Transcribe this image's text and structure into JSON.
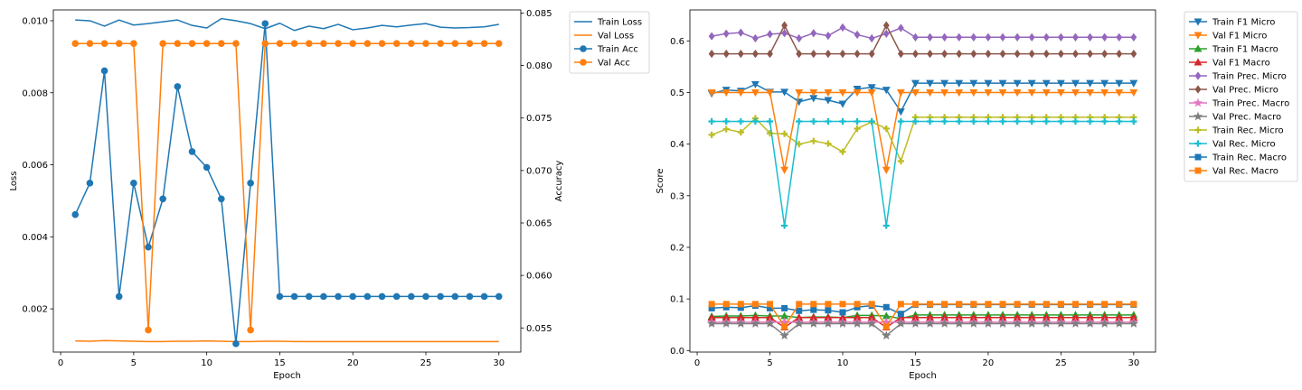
{
  "chart_data": [
    {
      "type": "line",
      "xlabel": "Epoch",
      "ylabel": "Loss",
      "y2label": "Accuracy",
      "xlim": [
        -0.5,
        31.5
      ],
      "ylim": [
        0.0008,
        0.0103
      ],
      "y2lim": [
        0.0527,
        0.0853
      ],
      "xticks": [
        0,
        5,
        10,
        15,
        20,
        25,
        30
      ],
      "yticks": [
        0.002,
        0.004,
        0.006,
        0.008,
        0.01
      ],
      "ytick_labels": [
        "0.002",
        "0.004",
        "0.006",
        "0.008",
        "0.010"
      ],
      "y2ticks": [
        0.055,
        0.06,
        0.065,
        0.07,
        0.075,
        0.08,
        0.085
      ],
      "y2tick_labels": [
        "0.055",
        "0.060",
        "0.065",
        "0.070",
        "0.075",
        "0.080",
        "0.085"
      ],
      "grid": false,
      "legend_placement": "outside-right",
      "x": [
        1,
        2,
        3,
        4,
        5,
        6,
        7,
        8,
        9,
        10,
        11,
        12,
        13,
        14,
        15,
        16,
        17,
        18,
        19,
        20,
        21,
        22,
        23,
        24,
        25,
        26,
        27,
        28,
        29,
        30
      ],
      "series": [
        {
          "name": "Train Loss",
          "axis": "left",
          "color": "#1f77b4",
          "marker": "none",
          "values": [
            0.01002,
            0.01,
            0.00985,
            0.01002,
            0.00988,
            0.00992,
            0.00997,
            0.01002,
            0.00987,
            0.0098,
            0.01006,
            0.01,
            0.00992,
            0.00978,
            0.00993,
            0.00973,
            0.00985,
            0.00978,
            0.0099,
            0.00975,
            0.0098,
            0.00987,
            0.00983,
            0.00988,
            0.00992,
            0.00982,
            0.0098,
            0.00981,
            0.00983,
            0.0099
          ]
        },
        {
          "name": "Val Loss",
          "axis": "left",
          "color": "#ff7f0e",
          "marker": "none",
          "values": [
            0.00111,
            0.0011,
            0.00112,
            0.00111,
            0.0011,
            0.00109,
            0.00109,
            0.0011,
            0.0011,
            0.00111,
            0.0011,
            0.00109,
            0.00109,
            0.0011,
            0.0011,
            0.00109,
            0.00109,
            0.00109,
            0.00109,
            0.00109,
            0.00109,
            0.00109,
            0.00109,
            0.00109,
            0.00109,
            0.00109,
            0.00109,
            0.00109,
            0.00109,
            0.00109
          ]
        },
        {
          "name": "Train Acc",
          "axis": "right",
          "color": "#1f77b4",
          "marker": "circle",
          "values": [
            0.0658,
            0.0688,
            0.0795,
            0.058,
            0.0688,
            0.0627,
            0.0673,
            0.078,
            0.0718,
            0.0703,
            0.0673,
            0.0535,
            0.0688,
            0.084,
            0.058,
            0.058,
            0.058,
            0.058,
            0.058,
            0.058,
            0.058,
            0.058,
            0.058,
            0.058,
            0.058,
            0.058,
            0.058,
            0.058,
            0.058,
            0.058
          ]
        },
        {
          "name": "Val Acc",
          "axis": "right",
          "color": "#ff7f0e",
          "marker": "circle",
          "values": [
            0.0821,
            0.0821,
            0.0821,
            0.0821,
            0.0821,
            0.0548,
            0.0821,
            0.0821,
            0.0821,
            0.0821,
            0.0821,
            0.0821,
            0.0548,
            0.0821,
            0.0821,
            0.0821,
            0.0821,
            0.0821,
            0.0821,
            0.0821,
            0.0821,
            0.0821,
            0.0821,
            0.0821,
            0.0821,
            0.0821,
            0.0821,
            0.0821,
            0.0821,
            0.0821
          ]
        }
      ]
    },
    {
      "type": "line",
      "xlabel": "Epoch",
      "ylabel": "Score",
      "xlim": [
        -0.5,
        31.5
      ],
      "ylim": [
        -0.003,
        0.66
      ],
      "xticks": [
        0,
        5,
        10,
        15,
        20,
        25,
        30
      ],
      "yticks": [
        0.0,
        0.1,
        0.2,
        0.3,
        0.4,
        0.5,
        0.6
      ],
      "ytick_labels": [
        "0.0",
        "0.1",
        "0.2",
        "0.3",
        "0.4",
        "0.5",
        "0.6"
      ],
      "grid": false,
      "legend_placement": "outside-right",
      "x": [
        1,
        2,
        3,
        4,
        5,
        6,
        7,
        8,
        9,
        10,
        11,
        12,
        13,
        14,
        15,
        16,
        17,
        18,
        19,
        20,
        21,
        22,
        23,
        24,
        25,
        26,
        27,
        28,
        29,
        30
      ],
      "series": [
        {
          "name": "Train F1 Micro",
          "color": "#1f77b4",
          "marker": "tri_down",
          "values": [
            0.498,
            0.505,
            0.503,
            0.516,
            0.501,
            0.501,
            0.482,
            0.489,
            0.485,
            0.478,
            0.507,
            0.51,
            0.505,
            0.463,
            0.518,
            0.518,
            0.518,
            0.518,
            0.518,
            0.518,
            0.518,
            0.518,
            0.518,
            0.518,
            0.518,
            0.518,
            0.518,
            0.518,
            0.518,
            0.518
          ]
        },
        {
          "name": "Val F1 Micro",
          "color": "#ff7f0e",
          "marker": "tri_down",
          "values": [
            0.5,
            0.5,
            0.5,
            0.5,
            0.5,
            0.35,
            0.5,
            0.5,
            0.5,
            0.5,
            0.5,
            0.5,
            0.35,
            0.5,
            0.5,
            0.5,
            0.5,
            0.5,
            0.5,
            0.5,
            0.5,
            0.5,
            0.5,
            0.5,
            0.5,
            0.5,
            0.5,
            0.5,
            0.5,
            0.5
          ]
        },
        {
          "name": "Train F1 Macro",
          "color": "#2ca02c",
          "marker": "tri_up",
          "values": [
            0.066,
            0.067,
            0.067,
            0.068,
            0.067,
            0.067,
            0.064,
            0.065,
            0.065,
            0.064,
            0.068,
            0.068,
            0.067,
            0.062,
            0.069,
            0.069,
            0.069,
            0.069,
            0.069,
            0.069,
            0.069,
            0.069,
            0.069,
            0.069,
            0.069,
            0.069,
            0.069,
            0.069,
            0.069,
            0.069
          ]
        },
        {
          "name": "Val F1 Macro",
          "color": "#d62728",
          "marker": "tri_up",
          "values": [
            0.064,
            0.064,
            0.064,
            0.064,
            0.064,
            0.045,
            0.064,
            0.064,
            0.064,
            0.064,
            0.064,
            0.064,
            0.045,
            0.064,
            0.064,
            0.064,
            0.064,
            0.064,
            0.064,
            0.064,
            0.064,
            0.064,
            0.064,
            0.064,
            0.064,
            0.064,
            0.064,
            0.064,
            0.064,
            0.064
          ]
        },
        {
          "name": "Train Prec. Micro",
          "color": "#9467bd",
          "marker": "diamond",
          "values": [
            0.609,
            0.614,
            0.616,
            0.605,
            0.613,
            0.615,
            0.605,
            0.615,
            0.61,
            0.626,
            0.612,
            0.605,
            0.614,
            0.625,
            0.607,
            0.607,
            0.607,
            0.607,
            0.607,
            0.607,
            0.607,
            0.607,
            0.607,
            0.607,
            0.607,
            0.607,
            0.607,
            0.607,
            0.607,
            0.607
          ]
        },
        {
          "name": "Val Prec. Micro",
          "color": "#8c564b",
          "marker": "diamond",
          "values": [
            0.575,
            0.575,
            0.575,
            0.575,
            0.575,
            0.63,
            0.575,
            0.575,
            0.575,
            0.575,
            0.575,
            0.575,
            0.63,
            0.575,
            0.575,
            0.575,
            0.575,
            0.575,
            0.575,
            0.575,
            0.575,
            0.575,
            0.575,
            0.575,
            0.575,
            0.575,
            0.575,
            0.575,
            0.575,
            0.575
          ]
        },
        {
          "name": "Train Prec. Macro",
          "color": "#e377c2",
          "marker": "star",
          "values": [
            0.055,
            0.055,
            0.055,
            0.055,
            0.055,
            0.055,
            0.055,
            0.055,
            0.055,
            0.055,
            0.055,
            0.055,
            0.055,
            0.055,
            0.055,
            0.055,
            0.055,
            0.055,
            0.055,
            0.055,
            0.055,
            0.055,
            0.055,
            0.055,
            0.055,
            0.055,
            0.055,
            0.055,
            0.055,
            0.055
          ]
        },
        {
          "name": "Val Prec. Macro",
          "color": "#7f7f7f",
          "marker": "star",
          "values": [
            0.052,
            0.052,
            0.052,
            0.052,
            0.052,
            0.029,
            0.052,
            0.052,
            0.052,
            0.052,
            0.052,
            0.052,
            0.029,
            0.052,
            0.052,
            0.052,
            0.052,
            0.052,
            0.052,
            0.052,
            0.052,
            0.052,
            0.052,
            0.052,
            0.052,
            0.052,
            0.052,
            0.052,
            0.052,
            0.052
          ]
        },
        {
          "name": "Train Rec. Micro",
          "color": "#bcbd22",
          "marker": "plus",
          "values": [
            0.418,
            0.429,
            0.423,
            0.45,
            0.421,
            0.42,
            0.4,
            0.406,
            0.401,
            0.385,
            0.43,
            0.443,
            0.43,
            0.367,
            0.452,
            0.452,
            0.452,
            0.452,
            0.452,
            0.452,
            0.452,
            0.452,
            0.452,
            0.452,
            0.452,
            0.452,
            0.452,
            0.452,
            0.452,
            0.452
          ]
        },
        {
          "name": "Val Rec. Micro",
          "color": "#17becf",
          "marker": "plus",
          "values": [
            0.444,
            0.444,
            0.444,
            0.444,
            0.444,
            0.242,
            0.444,
            0.444,
            0.444,
            0.444,
            0.444,
            0.444,
            0.242,
            0.444,
            0.444,
            0.444,
            0.444,
            0.444,
            0.444,
            0.444,
            0.444,
            0.444,
            0.444,
            0.444,
            0.444,
            0.444,
            0.444,
            0.444,
            0.444,
            0.444
          ]
        },
        {
          "name": "Train Rec. Macro",
          "color": "#1f77b4",
          "marker": "square",
          "values": [
            0.082,
            0.084,
            0.083,
            0.087,
            0.082,
            0.082,
            0.077,
            0.079,
            0.078,
            0.074,
            0.084,
            0.087,
            0.084,
            0.071,
            0.089,
            0.089,
            0.089,
            0.089,
            0.089,
            0.089,
            0.089,
            0.089,
            0.089,
            0.089,
            0.089,
            0.089,
            0.089,
            0.089,
            0.089,
            0.089
          ]
        },
        {
          "name": "Val Rec. Macro",
          "color": "#ff7f0e",
          "marker": "square",
          "values": [
            0.09,
            0.09,
            0.09,
            0.09,
            0.09,
            0.046,
            0.09,
            0.09,
            0.09,
            0.09,
            0.09,
            0.09,
            0.046,
            0.09,
            0.09,
            0.09,
            0.09,
            0.09,
            0.09,
            0.09,
            0.09,
            0.09,
            0.09,
            0.09,
            0.09,
            0.09,
            0.09,
            0.09,
            0.09,
            0.09
          ]
        }
      ]
    }
  ]
}
